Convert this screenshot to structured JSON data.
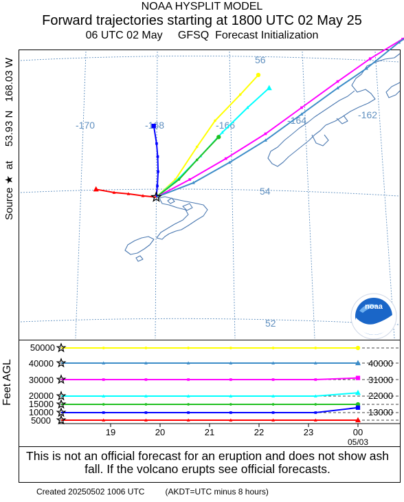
{
  "header": {
    "line1": "NOAA HYSPLIT MODEL",
    "line2": "Forward trajectories starting at 1800 UTC 02 May 25",
    "line3": "06 UTC 02 May     GFSQ  Forecast Initialization"
  },
  "side_label": "Source ★  at     53.93 N   168.03 W",
  "logo_text": "noaa",
  "colors": {
    "yellow": "#ffff00",
    "cyan": "#00ffff",
    "magenta": "#ff00ff",
    "steelblue": "#3c8cc8",
    "green": "#20c020",
    "blue": "#0000ff",
    "red": "#ff0000",
    "grid": "#5f8fbf",
    "coast": "#4a78b0"
  },
  "chart_data": [
    {
      "type": "map-trajectory",
      "source": {
        "lat": 53.93,
        "lon": -168.03
      },
      "lon_labels": [
        "-170",
        "-168",
        "-166",
        "-164",
        "-162"
      ],
      "lat_labels": [
        "56",
        "54",
        "52"
      ],
      "series": [
        {
          "color": "yellow",
          "marker": "circle",
          "points": [
            [
              -168.03,
              53.93
            ],
            [
              -167.5,
              54.2
            ],
            [
              -166.9,
              54.7
            ],
            [
              -166.4,
              55.1
            ],
            [
              -165.7,
              55.5
            ],
            [
              -165.2,
              55.8
            ]
          ]
        },
        {
          "color": "cyan",
          "marker": "triangle",
          "points": [
            [
              -168.03,
              53.93
            ],
            [
              -167.4,
              54.22
            ],
            [
              -166.8,
              54.56
            ],
            [
              -166.2,
              54.92
            ],
            [
              -165.5,
              55.3
            ],
            [
              -164.9,
              55.6
            ]
          ]
        },
        {
          "color": "green",
          "marker": "circle",
          "points": [
            [
              -168.03,
              53.93
            ],
            [
              -167.4,
              54.2
            ],
            [
              -166.9,
              54.5
            ],
            [
              -166.3,
              54.85
            ]
          ]
        },
        {
          "color": "magenta",
          "marker": "square",
          "points": [
            [
              -168.03,
              53.93
            ],
            [
              -167.1,
              54.2
            ],
            [
              -166.1,
              54.52
            ],
            [
              -165.0,
              54.9
            ],
            [
              -164.0,
              55.3
            ],
            [
              -163.0,
              55.7
            ],
            [
              -162.1,
              56.05
            ],
            [
              -161.2,
              56.35
            ],
            [
              -160.4,
              56.6
            ]
          ]
        },
        {
          "color": "steelblue",
          "marker": "triangle",
          "points": [
            [
              -168.03,
              53.93
            ],
            [
              -167.0,
              54.15
            ],
            [
              -166.0,
              54.46
            ],
            [
              -165.0,
              54.8
            ],
            [
              -164.0,
              55.2
            ],
            [
              -163.0,
              55.6
            ],
            [
              -162.2,
              55.9
            ],
            [
              -161.3,
              56.3
            ],
            [
              -160.5,
              56.6
            ]
          ]
        },
        {
          "color": "blue",
          "marker": "square",
          "points": [
            [
              -168.03,
              53.93
            ],
            [
              -168.0,
              54.1
            ],
            [
              -167.98,
              54.32
            ],
            [
              -167.99,
              54.55
            ],
            [
              -168.02,
              54.75
            ],
            [
              -168.1,
              55.02
            ]
          ]
        },
        {
          "color": "red",
          "marker": "triangle",
          "points": [
            [
              -168.03,
              53.93
            ],
            [
              -168.4,
              53.95
            ],
            [
              -168.8,
              53.98
            ],
            [
              -169.2,
              54.0
            ],
            [
              -169.7,
              54.05
            ]
          ]
        }
      ]
    },
    {
      "type": "line",
      "ylabel": "Feet AGL",
      "y_ticks": [
        "50000",
        "40000",
        "30000",
        "20000",
        "15000",
        "10000",
        "5000"
      ],
      "right_labels": [
        "40000",
        "31000",
        "22000",
        "13000"
      ],
      "x_ticks": [
        "19",
        "20",
        "21",
        "22",
        "23",
        "00"
      ],
      "x_sublabel": "05/03",
      "series": [
        {
          "color": "yellow",
          "marker": "circle",
          "values": [
            50000,
            50000,
            50000,
            50000,
            50000,
            50000,
            50000,
            50000
          ]
        },
        {
          "color": "steelblue",
          "marker": "triangle",
          "values": [
            40000,
            40000,
            40000,
            40000,
            40000,
            40000,
            40000,
            40000
          ]
        },
        {
          "color": "magenta",
          "marker": "square",
          "values": [
            30000,
            30000,
            30000,
            30000,
            30000,
            30000,
            30000,
            31000
          ]
        },
        {
          "color": "cyan",
          "marker": "triangle",
          "values": [
            20000,
            20000,
            20000,
            20000,
            20000,
            20000,
            20000,
            22000
          ]
        },
        {
          "color": "green",
          "marker": "circle",
          "values": [
            15000,
            15000,
            15000,
            15000,
            15000,
            15000,
            15000,
            15000
          ]
        },
        {
          "color": "blue",
          "marker": "square",
          "values": [
            10000,
            10000,
            10000,
            10000,
            10000,
            10000,
            10000,
            13000
          ]
        },
        {
          "color": "red",
          "marker": "triangle",
          "values": [
            5000,
            5000,
            5000,
            5000,
            5000,
            5000,
            5000,
            5000
          ]
        }
      ]
    }
  ],
  "disclaimer": "This is not an official forecast for an eruption and does not show ash fall. If the volcano erupts see official forecasts.",
  "footer": {
    "created": "Created 20250502 1006 UTC",
    "akdt": "(AKDT=UTC minus 8 hours)"
  }
}
